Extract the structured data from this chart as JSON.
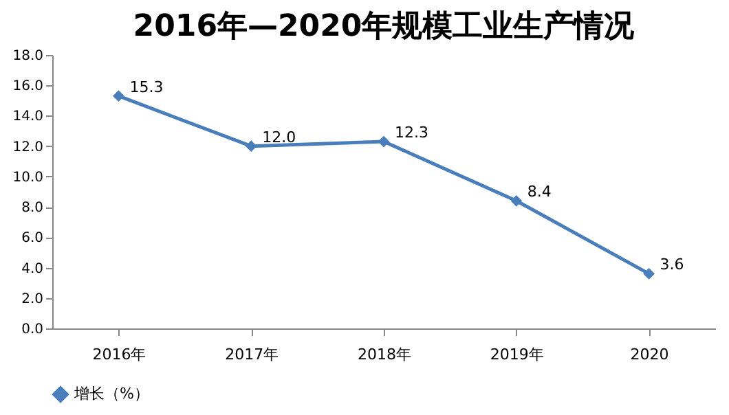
{
  "chart_data": {
    "type": "line",
    "title": "2016年—2020年规模工业生产情况",
    "categories": [
      "2016年",
      "2017年",
      "2018年",
      "2019年",
      "2020"
    ],
    "series": [
      {
        "name": "增长（%）",
        "color": "#4a7ebb",
        "values": [
          15.3,
          12.0,
          12.3,
          8.4,
          3.6
        ],
        "value_labels": [
          "15.3",
          "12.0",
          "12.3",
          "8.4",
          "3.6"
        ]
      }
    ],
    "ylim": [
      0,
      18
    ],
    "yticks": [
      {
        "value": 0,
        "label": "0.0"
      },
      {
        "value": 2,
        "label": "2.0"
      },
      {
        "value": 4,
        "label": "4.0"
      },
      {
        "value": 6,
        "label": "6.0"
      },
      {
        "value": 8,
        "label": "8.0"
      },
      {
        "value": 10,
        "label": "10.0"
      },
      {
        "value": 12,
        "label": "12.0"
      },
      {
        "value": 14,
        "label": "14.0"
      },
      {
        "value": 16,
        "label": "16.0"
      },
      {
        "value": 18,
        "label": "18.0"
      }
    ],
    "grid": false,
    "legend": "bottom",
    "marker": "diamond",
    "line_style": "solid"
  }
}
